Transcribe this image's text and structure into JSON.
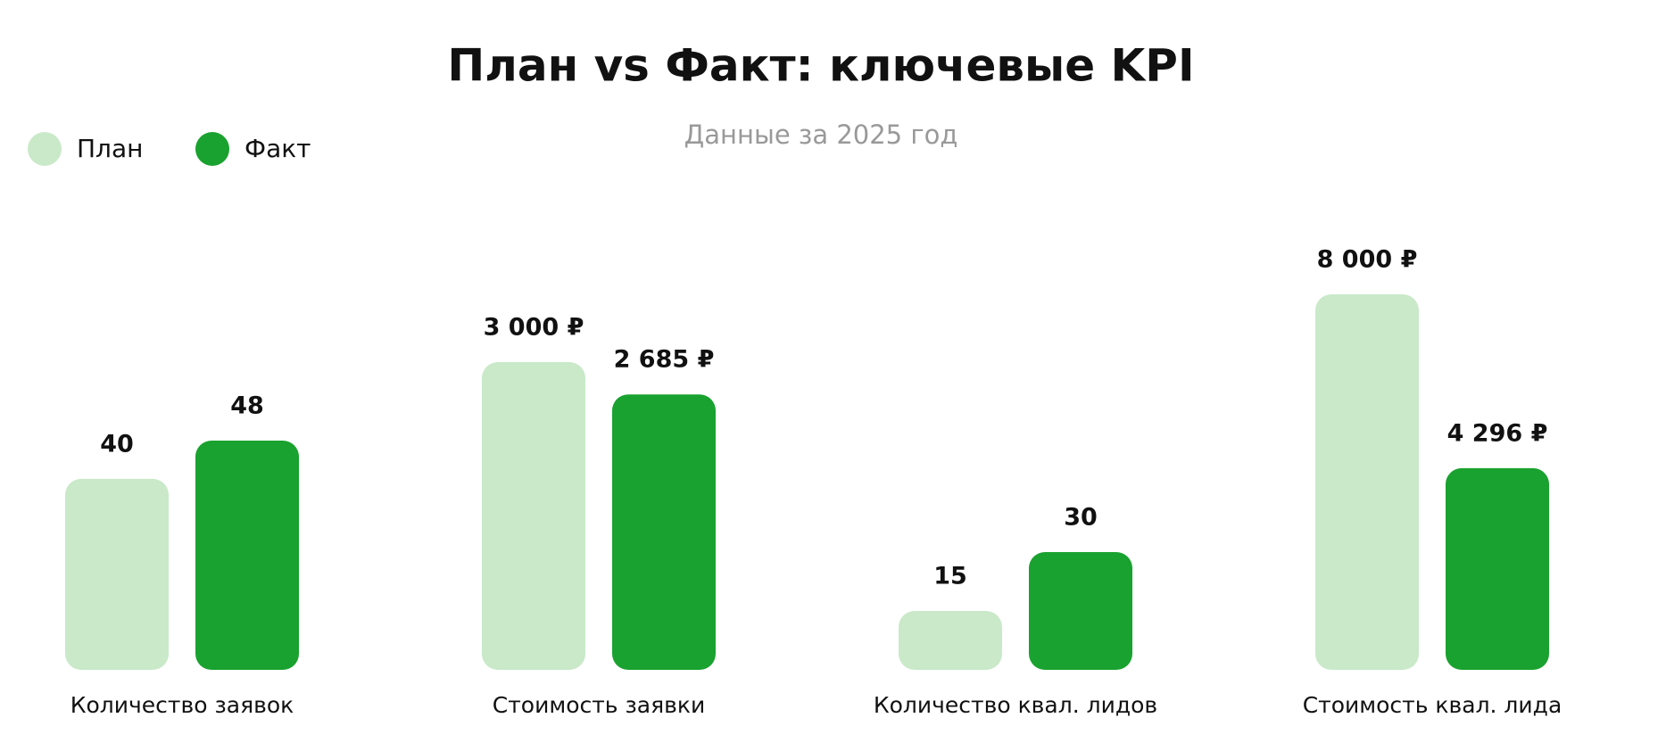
{
  "chart_data": {
    "type": "bar",
    "title": "План vs Факт: ключевые KPI",
    "subtitle": "Данные за 2025 год",
    "categories": [
      "Количество заявок",
      "Стоимость заявки",
      "Количество квал. лидов",
      "Стоимость квал. лида"
    ],
    "series": [
      {
        "name": "План",
        "color": "#c9e9c9",
        "values": [
          40,
          3000,
          15,
          8000
        ],
        "value_labels": [
          "40",
          "3 000 ₽",
          "15",
          "8 000 ₽"
        ]
      },
      {
        "name": "Факт",
        "color": "#19a22f",
        "values": [
          48,
          2685,
          30,
          4296
        ],
        "value_labels": [
          "48",
          "2 685 ₽",
          "30",
          "4 296 ₽"
        ]
      }
    ],
    "legend": "top-left"
  }
}
